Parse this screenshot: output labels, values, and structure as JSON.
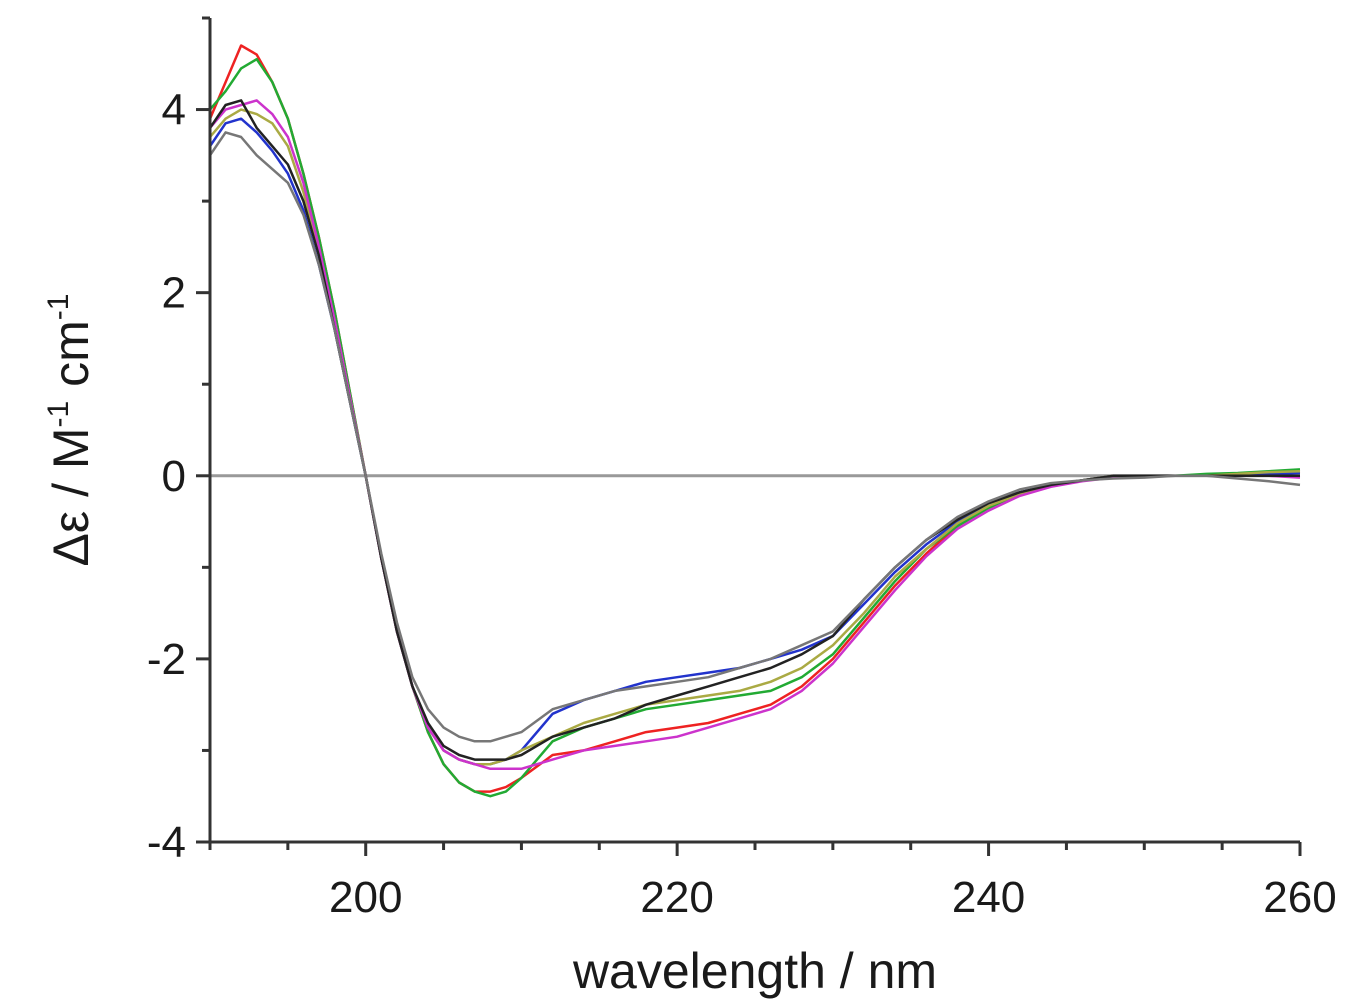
{
  "chart_data": {
    "type": "line",
    "xlabel": "wavelength / nm",
    "ylabel_parts": {
      "a": "Δε / M",
      "b": "-1",
      "c": " cm",
      "d": "-1"
    },
    "xlim": [
      190,
      260
    ],
    "ylim": [
      -4,
      5
    ],
    "x_ticks": [
      200,
      220,
      240,
      260
    ],
    "y_ticks": [
      4,
      2,
      0,
      -2,
      -4
    ],
    "x_tick_labels": [
      "200",
      "220",
      "240",
      "260"
    ],
    "y_tick_labels": [
      "4",
      "2",
      "0",
      "-2",
      "-4"
    ],
    "zero_line": true,
    "grid": false,
    "series": [
      {
        "color": "#ee2222",
        "x": [
          190,
          191,
          192,
          193,
          194,
          195,
          196,
          197,
          198,
          199,
          200,
          201,
          202,
          203,
          204,
          205,
          206,
          207,
          208,
          209,
          210,
          212,
          214,
          216,
          218,
          220,
          222,
          224,
          226,
          228,
          230,
          232,
          234,
          236,
          238,
          240,
          242,
          244,
          246,
          248,
          250,
          252,
          254,
          256,
          258,
          260
        ],
        "y": [
          3.9,
          4.3,
          4.7,
          4.6,
          4.3,
          3.9,
          3.3,
          2.6,
          1.8,
          0.9,
          0.0,
          -0.9,
          -1.7,
          -2.3,
          -2.8,
          -3.15,
          -3.35,
          -3.45,
          -3.45,
          -3.4,
          -3.3,
          -3.05,
          -3.0,
          -2.9,
          -2.8,
          -2.75,
          -2.7,
          -2.6,
          -2.5,
          -2.3,
          -2.0,
          -1.6,
          -1.2,
          -0.85,
          -0.55,
          -0.35,
          -0.2,
          -0.1,
          -0.05,
          0.0,
          0.0,
          0.0,
          0.0,
          0.0,
          0.03,
          0.05
        ]
      },
      {
        "color": "#22aa33",
        "x": [
          190,
          191,
          192,
          193,
          194,
          195,
          196,
          197,
          198,
          199,
          200,
          201,
          202,
          203,
          204,
          205,
          206,
          207,
          208,
          209,
          210,
          212,
          214,
          216,
          218,
          220,
          222,
          224,
          226,
          228,
          230,
          232,
          234,
          236,
          238,
          240,
          242,
          244,
          246,
          248,
          250,
          252,
          254,
          256,
          258,
          260
        ],
        "y": [
          4.0,
          4.2,
          4.45,
          4.55,
          4.3,
          3.9,
          3.3,
          2.6,
          1.8,
          0.9,
          0.0,
          -0.9,
          -1.7,
          -2.3,
          -2.8,
          -3.15,
          -3.35,
          -3.45,
          -3.5,
          -3.45,
          -3.3,
          -2.9,
          -2.75,
          -2.65,
          -2.55,
          -2.5,
          -2.45,
          -2.4,
          -2.35,
          -2.2,
          -1.95,
          -1.55,
          -1.15,
          -0.8,
          -0.55,
          -0.35,
          -0.2,
          -0.1,
          -0.05,
          0.0,
          0.0,
          0.0,
          0.02,
          0.03,
          0.05,
          0.07
        ]
      },
      {
        "color": "#2233cc",
        "x": [
          190,
          191,
          192,
          193,
          194,
          195,
          196,
          197,
          198,
          199,
          200,
          201,
          202,
          203,
          204,
          205,
          206,
          207,
          208,
          209,
          210,
          212,
          214,
          216,
          218,
          220,
          222,
          224,
          226,
          228,
          230,
          232,
          234,
          236,
          238,
          240,
          242,
          244,
          246,
          248,
          250,
          252,
          254,
          256,
          258,
          260
        ],
        "y": [
          3.6,
          3.85,
          3.9,
          3.75,
          3.55,
          3.3,
          2.9,
          2.3,
          1.6,
          0.8,
          0.0,
          -0.9,
          -1.7,
          -2.3,
          -2.75,
          -3.0,
          -3.1,
          -3.15,
          -3.15,
          -3.1,
          -3.0,
          -2.6,
          -2.45,
          -2.35,
          -2.25,
          -2.2,
          -2.15,
          -2.1,
          -2.0,
          -1.9,
          -1.75,
          -1.4,
          -1.05,
          -0.75,
          -0.5,
          -0.3,
          -0.18,
          -0.1,
          -0.05,
          0.0,
          0.0,
          0.0,
          0.0,
          0.0,
          0.02,
          0.03
        ]
      },
      {
        "color": "#aaaa44",
        "x": [
          190,
          191,
          192,
          193,
          194,
          195,
          196,
          197,
          198,
          199,
          200,
          201,
          202,
          203,
          204,
          205,
          206,
          207,
          208,
          209,
          210,
          212,
          214,
          216,
          218,
          220,
          222,
          224,
          226,
          228,
          230,
          232,
          234,
          236,
          238,
          240,
          242,
          244,
          246,
          248,
          250,
          252,
          254,
          256,
          258,
          260
        ],
        "y": [
          3.7,
          3.9,
          4.0,
          3.95,
          3.85,
          3.6,
          3.1,
          2.45,
          1.7,
          0.85,
          0.0,
          -0.9,
          -1.7,
          -2.3,
          -2.75,
          -3.0,
          -3.1,
          -3.15,
          -3.15,
          -3.1,
          -3.0,
          -2.85,
          -2.7,
          -2.6,
          -2.5,
          -2.45,
          -2.4,
          -2.35,
          -2.25,
          -2.1,
          -1.85,
          -1.5,
          -1.1,
          -0.8,
          -0.52,
          -0.33,
          -0.2,
          -0.1,
          -0.05,
          0.0,
          0.0,
          0.0,
          0.0,
          0.02,
          0.04,
          0.05
        ]
      },
      {
        "color": "#cc33cc",
        "x": [
          190,
          191,
          192,
          193,
          194,
          195,
          196,
          197,
          198,
          199,
          200,
          201,
          202,
          203,
          204,
          205,
          206,
          207,
          208,
          209,
          210,
          212,
          214,
          216,
          218,
          220,
          222,
          224,
          226,
          228,
          230,
          232,
          234,
          236,
          238,
          240,
          242,
          244,
          246,
          248,
          250,
          252,
          254,
          256,
          258,
          260
        ],
        "y": [
          3.8,
          4.0,
          4.05,
          4.1,
          3.95,
          3.7,
          3.2,
          2.5,
          1.7,
          0.85,
          0.0,
          -0.9,
          -1.7,
          -2.3,
          -2.75,
          -3.0,
          -3.1,
          -3.15,
          -3.2,
          -3.2,
          -3.2,
          -3.1,
          -3.0,
          -2.95,
          -2.9,
          -2.85,
          -2.75,
          -2.65,
          -2.55,
          -2.35,
          -2.05,
          -1.65,
          -1.25,
          -0.88,
          -0.58,
          -0.38,
          -0.22,
          -0.12,
          -0.06,
          -0.02,
          0.0,
          0.0,
          0.0,
          0.0,
          0.0,
          -0.02
        ]
      },
      {
        "color": "#222222",
        "x": [
          190,
          191,
          192,
          193,
          194,
          195,
          196,
          197,
          198,
          199,
          200,
          201,
          202,
          203,
          204,
          205,
          206,
          207,
          208,
          209,
          210,
          212,
          214,
          216,
          218,
          220,
          222,
          224,
          226,
          228,
          230,
          232,
          234,
          236,
          238,
          240,
          242,
          244,
          246,
          248,
          250,
          252,
          254,
          256,
          258,
          260
        ],
        "y": [
          3.8,
          4.05,
          4.1,
          3.8,
          3.6,
          3.4,
          3.0,
          2.4,
          1.6,
          0.8,
          0.0,
          -0.9,
          -1.7,
          -2.3,
          -2.7,
          -2.95,
          -3.05,
          -3.1,
          -3.1,
          -3.1,
          -3.05,
          -2.85,
          -2.75,
          -2.65,
          -2.5,
          -2.4,
          -2.3,
          -2.2,
          -2.1,
          -1.95,
          -1.75,
          -1.35,
          -1.0,
          -0.7,
          -0.48,
          -0.3,
          -0.18,
          -0.1,
          -0.05,
          0.0,
          0.0,
          0.0,
          0.0,
          0.0,
          0.0,
          0.0
        ]
      },
      {
        "color": "#777777",
        "x": [
          190,
          191,
          192,
          193,
          194,
          195,
          196,
          197,
          198,
          199,
          200,
          201,
          202,
          203,
          204,
          205,
          206,
          207,
          208,
          209,
          210,
          212,
          214,
          216,
          218,
          220,
          222,
          224,
          226,
          228,
          230,
          232,
          234,
          236,
          238,
          240,
          242,
          244,
          246,
          248,
          250,
          252,
          254,
          256,
          258,
          260
        ],
        "y": [
          3.5,
          3.75,
          3.7,
          3.5,
          3.35,
          3.2,
          2.85,
          2.3,
          1.6,
          0.8,
          0.0,
          -0.85,
          -1.6,
          -2.2,
          -2.55,
          -2.75,
          -2.85,
          -2.9,
          -2.9,
          -2.85,
          -2.8,
          -2.55,
          -2.45,
          -2.35,
          -2.3,
          -2.25,
          -2.2,
          -2.1,
          -2.0,
          -1.85,
          -1.7,
          -1.35,
          -1.0,
          -0.7,
          -0.45,
          -0.28,
          -0.15,
          -0.08,
          -0.05,
          -0.03,
          -0.02,
          0.0,
          0.0,
          -0.03,
          -0.06,
          -0.1
        ]
      }
    ]
  }
}
